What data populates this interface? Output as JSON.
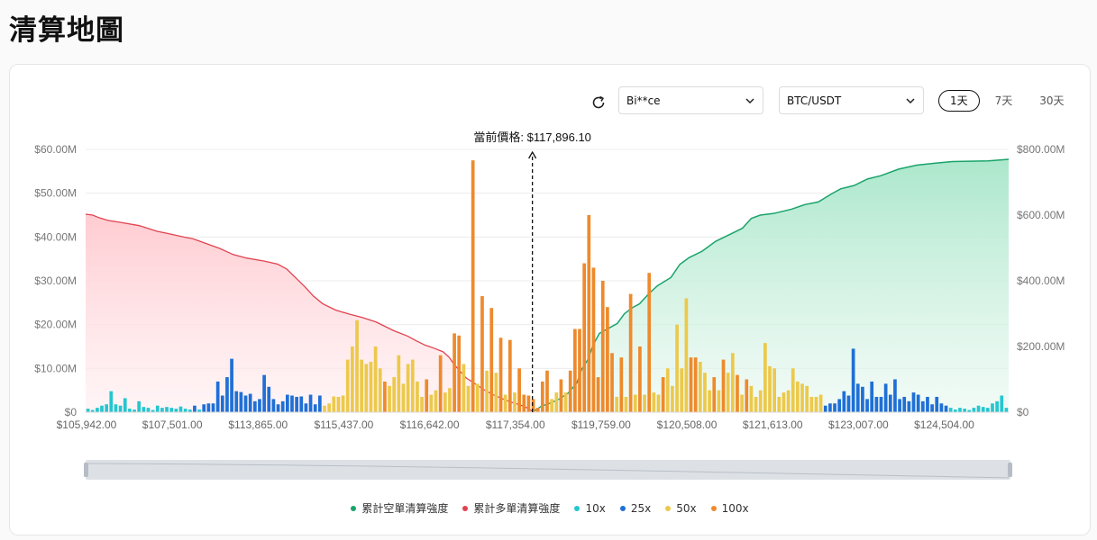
{
  "page": {
    "title": "清算地圖"
  },
  "controls": {
    "exchange": "Bi**ce",
    "pair": "BTC/USDT",
    "ranges": [
      "1天",
      "7天",
      "30天"
    ],
    "active_range": 0
  },
  "legend": [
    {
      "label": "累計空單清算強度",
      "color": "#1aa36b"
    },
    {
      "label": "累計多單清算強度",
      "color": "#e0434f"
    },
    {
      "label": "10x",
      "color": "#25c6cf"
    },
    {
      "label": "25x",
      "color": "#1f6fd6"
    },
    {
      "label": "50x",
      "color": "#ecc94b"
    },
    {
      "label": "100x",
      "color": "#ee8a2c"
    }
  ],
  "chart_data": {
    "type": "bar",
    "current_price_label": "當前價格: $117,896.10",
    "x_tick_labels": [
      "$105,942.00",
      "$107,501.00",
      "$113,865.00",
      "$115,437.00",
      "$116,642.00",
      "$117,354.00",
      "$119,759.00",
      "$120,508.00",
      "$121,613.00",
      "$123,007.00",
      "$124,504.00"
    ],
    "y_left": {
      "ticks": [
        "$0",
        "$10.00M",
        "$20.00M",
        "$30.00M",
        "$40.00M",
        "$50.00M",
        "$60.00M"
      ],
      "range": [
        0,
        60
      ],
      "unit": "M"
    },
    "y_right": {
      "ticks": [
        "$0",
        "$200.00M",
        "$400.00M",
        "$600.00M",
        "$800.00M"
      ],
      "range": [
        0,
        800
      ],
      "unit": "M"
    },
    "colors": {
      "10x": "#25c6cf",
      "25x": "#1f6fd6",
      "50x": "#ecc94b",
      "100x": "#ee8a2c",
      "long": "#e0434f",
      "short": "#1aa36b"
    },
    "bars": [
      [
        0.8,
        "10x"
      ],
      [
        0.5,
        "10x"
      ],
      [
        1.0,
        "10x"
      ],
      [
        1.5,
        "10x"
      ],
      [
        1.8,
        "10x"
      ],
      [
        4.8,
        "10x"
      ],
      [
        1.8,
        "10x"
      ],
      [
        1.5,
        "10x"
      ],
      [
        3.2,
        "10x"
      ],
      [
        0.8,
        "10x"
      ],
      [
        0.6,
        "10x"
      ],
      [
        2.5,
        "10x"
      ],
      [
        1.2,
        "10x"
      ],
      [
        1.0,
        "10x"
      ],
      [
        0.5,
        "10x"
      ],
      [
        1.5,
        "10x"
      ],
      [
        1.0,
        "10x"
      ],
      [
        1.2,
        "10x"
      ],
      [
        1.0,
        "10x"
      ],
      [
        0.8,
        "10x"
      ],
      [
        1.3,
        "10x"
      ],
      [
        0.8,
        "10x"
      ],
      [
        0.6,
        "10x"
      ],
      [
        1.5,
        "25x"
      ],
      [
        0.6,
        "10x"
      ],
      [
        1.8,
        "25x"
      ],
      [
        2.0,
        "25x"
      ],
      [
        2.0,
        "25x"
      ],
      [
        7.0,
        "25x"
      ],
      [
        3.8,
        "25x"
      ],
      [
        8.0,
        "25x"
      ],
      [
        12.2,
        "25x"
      ],
      [
        4.8,
        "25x"
      ],
      [
        4.6,
        "25x"
      ],
      [
        3.8,
        "25x"
      ],
      [
        4.2,
        "25x"
      ],
      [
        2.5,
        "25x"
      ],
      [
        3.0,
        "25x"
      ],
      [
        8.5,
        "25x"
      ],
      [
        5.8,
        "25x"
      ],
      [
        3.0,
        "25x"
      ],
      [
        1.8,
        "25x"
      ],
      [
        2.5,
        "25x"
      ],
      [
        4.0,
        "25x"
      ],
      [
        3.8,
        "25x"
      ],
      [
        3.5,
        "25x"
      ],
      [
        3.6,
        "25x"
      ],
      [
        2.0,
        "25x"
      ],
      [
        4.0,
        "25x"
      ],
      [
        1.8,
        "25x"
      ],
      [
        3.8,
        "25x"
      ],
      [
        1.5,
        "50x"
      ],
      [
        2.0,
        "50x"
      ],
      [
        3.6,
        "50x"
      ],
      [
        3.5,
        "50x"
      ],
      [
        3.8,
        "50x"
      ],
      [
        12.0,
        "50x"
      ],
      [
        15.0,
        "50x"
      ],
      [
        21.0,
        "50x"
      ],
      [
        12.0,
        "50x"
      ],
      [
        11.0,
        "50x"
      ],
      [
        11.5,
        "50x"
      ],
      [
        15.0,
        "50x"
      ],
      [
        10.0,
        "50x"
      ],
      [
        7.0,
        "100x"
      ],
      [
        6.0,
        "50x"
      ],
      [
        8.0,
        "50x"
      ],
      [
        13.0,
        "50x"
      ],
      [
        6.5,
        "50x"
      ],
      [
        11.0,
        "50x"
      ],
      [
        12.0,
        "50x"
      ],
      [
        7.0,
        "50x"
      ],
      [
        3.5,
        "50x"
      ],
      [
        7.5,
        "100x"
      ],
      [
        4.0,
        "50x"
      ],
      [
        5.0,
        "50x"
      ],
      [
        13.0,
        "100x"
      ],
      [
        4.5,
        "50x"
      ],
      [
        5.5,
        "50x"
      ],
      [
        18.0,
        "100x"
      ],
      [
        17.5,
        "100x"
      ],
      [
        11.0,
        "50x"
      ],
      [
        6.0,
        "50x"
      ],
      [
        57.5,
        "100x"
      ],
      [
        6.5,
        "50x"
      ],
      [
        26.5,
        "100x"
      ],
      [
        9.5,
        "50x"
      ],
      [
        23.8,
        "100x"
      ],
      [
        9.0,
        "50x"
      ],
      [
        17.0,
        "100x"
      ],
      [
        4.0,
        "50x"
      ],
      [
        16.5,
        "100x"
      ],
      [
        4.5,
        "50x"
      ],
      [
        10.0,
        "100x"
      ],
      [
        4.0,
        "100x"
      ],
      [
        3.8,
        "100x"
      ],
      [
        3.0,
        "100x"
      ],
      [
        1.0,
        "100x"
      ],
      [
        7.0,
        "100x"
      ],
      [
        9.5,
        "100x"
      ],
      [
        3.0,
        "50x"
      ],
      [
        4.5,
        "50x"
      ],
      [
        7.5,
        "100x"
      ],
      [
        4.5,
        "50x"
      ],
      [
        9.5,
        "100x"
      ],
      [
        19.0,
        "100x"
      ],
      [
        19.0,
        "100x"
      ],
      [
        34.0,
        "100x"
      ],
      [
        45.0,
        "100x"
      ],
      [
        33.0,
        "100x"
      ],
      [
        8.0,
        "100x"
      ],
      [
        30.0,
        "100x"
      ],
      [
        24.0,
        "100x"
      ],
      [
        13.5,
        "100x"
      ],
      [
        3.5,
        "50x"
      ],
      [
        12.5,
        "100x"
      ],
      [
        3.5,
        "50x"
      ],
      [
        27.0,
        "100x"
      ],
      [
        4.0,
        "50x"
      ],
      [
        15.0,
        "100x"
      ],
      [
        4.0,
        "50x"
      ],
      [
        31.8,
        "100x"
      ],
      [
        4.5,
        "50x"
      ],
      [
        4.0,
        "50x"
      ],
      [
        8.0,
        "100x"
      ],
      [
        10.0,
        "50x"
      ],
      [
        6.0,
        "50x"
      ],
      [
        20.0,
        "50x"
      ],
      [
        10.0,
        "50x"
      ],
      [
        26.0,
        "50x"
      ],
      [
        12.5,
        "100x"
      ],
      [
        12.5,
        "100x"
      ],
      [
        11.5,
        "50x"
      ],
      [
        9.0,
        "50x"
      ],
      [
        5.0,
        "50x"
      ],
      [
        8.0,
        "100x"
      ],
      [
        5.0,
        "50x"
      ],
      [
        12.0,
        "100x"
      ],
      [
        9.0,
        "50x"
      ],
      [
        13.5,
        "50x"
      ],
      [
        8.5,
        "100x"
      ],
      [
        4.0,
        "50x"
      ],
      [
        7.5,
        "100x"
      ],
      [
        6.0,
        "50x"
      ],
      [
        3.5,
        "50x"
      ],
      [
        5.0,
        "50x"
      ],
      [
        15.8,
        "50x"
      ],
      [
        10.5,
        "50x"
      ],
      [
        10.0,
        "50x"
      ],
      [
        3.5,
        "50x"
      ],
      [
        4.5,
        "50x"
      ],
      [
        5.0,
        "50x"
      ],
      [
        10.0,
        "50x"
      ],
      [
        7.0,
        "50x"
      ],
      [
        6.5,
        "50x"
      ],
      [
        6.0,
        "50x"
      ],
      [
        3.5,
        "50x"
      ],
      [
        3.5,
        "50x"
      ],
      [
        4.0,
        "50x"
      ],
      [
        1.5,
        "25x"
      ],
      [
        2.0,
        "25x"
      ],
      [
        2.0,
        "25x"
      ],
      [
        3.0,
        "25x"
      ],
      [
        4.8,
        "25x"
      ],
      [
        3.8,
        "25x"
      ],
      [
        14.5,
        "25x"
      ],
      [
        6.5,
        "25x"
      ],
      [
        5.8,
        "25x"
      ],
      [
        3.0,
        "25x"
      ],
      [
        7.0,
        "25x"
      ],
      [
        3.5,
        "25x"
      ],
      [
        3.5,
        "25x"
      ],
      [
        6.5,
        "25x"
      ],
      [
        4.0,
        "25x"
      ],
      [
        7.5,
        "25x"
      ],
      [
        3.0,
        "25x"
      ],
      [
        3.5,
        "25x"
      ],
      [
        2.5,
        "25x"
      ],
      [
        4.5,
        "25x"
      ],
      [
        4.0,
        "25x"
      ],
      [
        2.5,
        "25x"
      ],
      [
        3.5,
        "25x"
      ],
      [
        1.8,
        "25x"
      ],
      [
        3.5,
        "25x"
      ],
      [
        2.0,
        "25x"
      ],
      [
        1.5,
        "25x"
      ],
      [
        1.0,
        "10x"
      ],
      [
        0.6,
        "10x"
      ],
      [
        1.0,
        "10x"
      ],
      [
        0.8,
        "10x"
      ],
      [
        0.5,
        "10x"
      ],
      [
        1.0,
        "10x"
      ],
      [
        1.5,
        "10x"
      ],
      [
        1.2,
        "10x"
      ],
      [
        1.0,
        "10x"
      ],
      [
        2.0,
        "10x"
      ],
      [
        2.5,
        "10x"
      ],
      [
        3.8,
        "10x"
      ],
      [
        1.0,
        "10x"
      ]
    ],
    "long_cumulative": [
      [
        0,
        45.2
      ],
      [
        8,
        45.0
      ],
      [
        15,
        44.4
      ],
      [
        25,
        43.8
      ],
      [
        40,
        43.3
      ],
      [
        60,
        42.6
      ],
      [
        80,
        41.3
      ],
      [
        90,
        40.9
      ],
      [
        110,
        40.0
      ],
      [
        120,
        39.6
      ],
      [
        135,
        38.5
      ],
      [
        150,
        37.4
      ],
      [
        165,
        36.0
      ],
      [
        180,
        35.2
      ],
      [
        200,
        34.5
      ],
      [
        215,
        33.8
      ],
      [
        225,
        32.7
      ],
      [
        235,
        30.7
      ],
      [
        245,
        28.7
      ],
      [
        255,
        26.5
      ],
      [
        265,
        24.8
      ],
      [
        280,
        23.3
      ],
      [
        295,
        22.4
      ],
      [
        310,
        21.6
      ],
      [
        325,
        20.6
      ],
      [
        335,
        19.6
      ],
      [
        345,
        18.6
      ],
      [
        360,
        17.4
      ],
      [
        370,
        16.3
      ],
      [
        380,
        15.3
      ],
      [
        390,
        14.6
      ],
      [
        400,
        13.8
      ],
      [
        407,
        12.5
      ],
      [
        412,
        11.0
      ],
      [
        418,
        9.6
      ],
      [
        426,
        7.8
      ],
      [
        436,
        6.5
      ],
      [
        446,
        5.1
      ],
      [
        456,
        4.0
      ],
      [
        466,
        3.1
      ],
      [
        476,
        2.3
      ],
      [
        486,
        1.7
      ],
      [
        494,
        1.0
      ],
      [
        500,
        0.2
      ]
    ],
    "short_cumulative": [
      [
        500,
        0.0
      ],
      [
        510,
        18
      ],
      [
        520,
        28
      ],
      [
        530,
        40
      ],
      [
        540,
        58
      ],
      [
        550,
        90
      ],
      [
        555,
        130
      ],
      [
        562,
        160
      ],
      [
        568,
        205
      ],
      [
        575,
        240
      ],
      [
        585,
        255
      ],
      [
        595,
        270
      ],
      [
        603,
        300
      ],
      [
        613,
        320
      ],
      [
        620,
        330
      ],
      [
        630,
        360
      ],
      [
        640,
        385
      ],
      [
        655,
        410
      ],
      [
        665,
        450
      ],
      [
        675,
        470
      ],
      [
        690,
        490
      ],
      [
        705,
        520
      ],
      [
        720,
        540
      ],
      [
        735,
        560
      ],
      [
        745,
        590
      ],
      [
        755,
        600
      ],
      [
        770,
        605
      ],
      [
        790,
        618
      ],
      [
        805,
        632
      ],
      [
        820,
        640
      ],
      [
        835,
        665
      ],
      [
        845,
        680
      ],
      [
        860,
        690
      ],
      [
        875,
        710
      ],
      [
        890,
        720
      ],
      [
        910,
        740
      ],
      [
        930,
        752
      ],
      [
        950,
        758
      ],
      [
        970,
        763
      ],
      [
        990,
        764
      ],
      [
        1010,
        765
      ],
      [
        1025,
        768
      ],
      [
        1033,
        770
      ]
    ]
  }
}
